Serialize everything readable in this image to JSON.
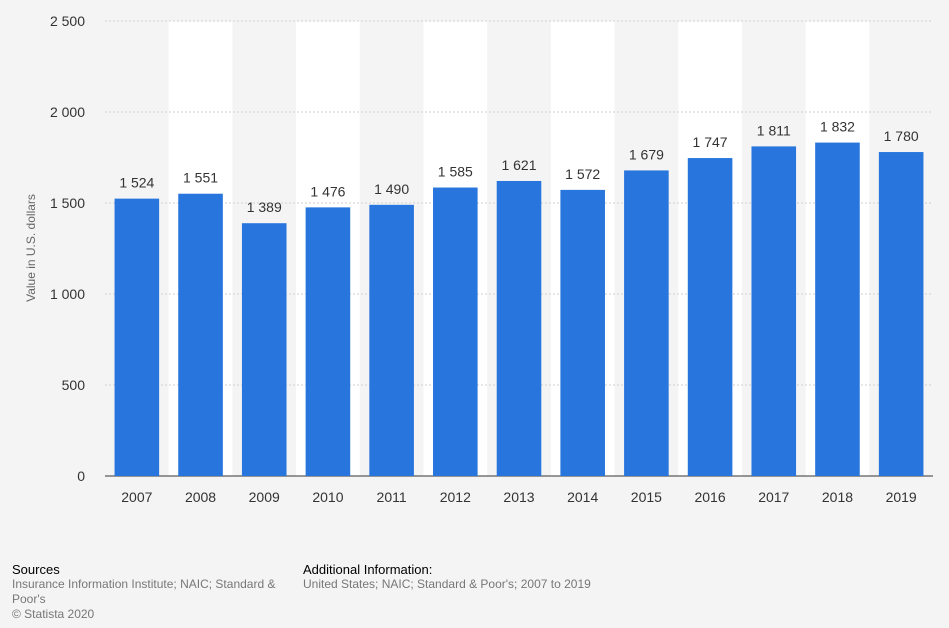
{
  "chart_data": {
    "type": "bar",
    "categories": [
      "2007",
      "2008",
      "2009",
      "2010",
      "2011",
      "2012",
      "2013",
      "2014",
      "2015",
      "2016",
      "2017",
      "2018",
      "2019"
    ],
    "values": [
      1524,
      1551,
      1389,
      1476,
      1490,
      1585,
      1621,
      1572,
      1679,
      1747,
      1811,
      1832,
      1780
    ],
    "value_labels": [
      "1 524",
      "1 551",
      "1 389",
      "1 476",
      "1 490",
      "1 585",
      "1 621",
      "1 572",
      "1 679",
      "1 747",
      "1 811",
      "1 832",
      "1 780"
    ],
    "ylabel": "Value in U.S. dollars",
    "ylim": [
      0,
      2500
    ],
    "yticks": [
      0,
      500,
      1000,
      1500,
      2000,
      2500
    ],
    "ytick_labels": [
      "0",
      "500",
      "1 000",
      "1 500",
      "2 000",
      "2 500"
    ],
    "grid": true,
    "bar_color": "#2876dd"
  },
  "footer": {
    "sources_title": "Sources",
    "sources_text": "Insurance Information Institute; NAIC; Standard & Poor's",
    "copyright": "© Statista 2020",
    "additional_title": "Additional Information:",
    "additional_text": "United States; NAIC; Standard & Poor's; 2007 to 2019"
  }
}
